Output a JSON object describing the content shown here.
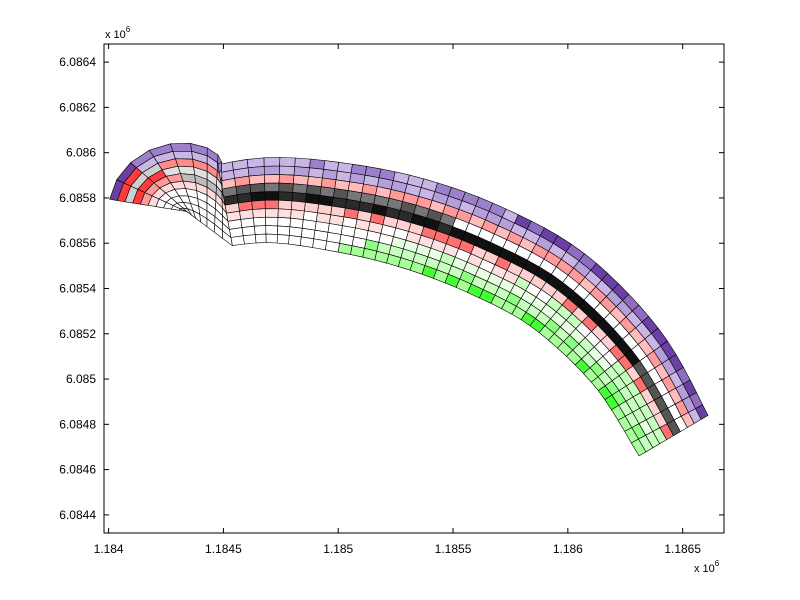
{
  "chart_data": {
    "type": "heatmap",
    "title": "",
    "xlabel": "",
    "ylabel": "",
    "description_of_marks": "curvilinear grid of colored quadrilateral cells",
    "x_axis": {
      "range": [
        1.18398,
        1.18668
      ],
      "ticks": [
        1.184,
        1.1845,
        1.185,
        1.1855,
        1.186,
        1.1865
      ],
      "tick_labels": [
        "1.184",
        "1.1845",
        "1.185",
        "1.1855",
        "1.186",
        "1.1865"
      ],
      "multiplier_base": "x 10",
      "multiplier_exp": "6"
    },
    "y_axis": {
      "range": [
        6.08432,
        6.08648
      ],
      "ticks": [
        6.0844,
        6.0846,
        6.0848,
        6.085,
        6.0852,
        6.0854,
        6.0856,
        6.0858,
        6.086,
        6.0862,
        6.0864
      ],
      "tick_labels": [
        "6.0844",
        "6.0846",
        "6.0848",
        "6.085",
        "6.0852",
        "6.0854",
        "6.0856",
        "6.0858",
        "6.086",
        "6.0862",
        "6.0864"
      ],
      "multiplier_base": "x 10",
      "multiplier_exp": "6"
    },
    "grid": false,
    "band_colors": {
      "purple": "#6a3fa6",
      "light_purple": "#c9b6e4",
      "red": "#ff3b3b",
      "pink": "#ffbcbc",
      "black": "#111111",
      "grey": "#9a9a9a",
      "green": "#44ff33",
      "light_green": "#c8ffc0",
      "white": "#ffffff"
    },
    "centerline": [
      [
        1.18436,
        6.08574
      ],
      [
        1.18468,
        6.08579
      ],
      [
        1.185,
        6.08576
      ],
      [
        1.18532,
        6.08569
      ],
      [
        1.18564,
        6.08557
      ],
      [
        1.18596,
        6.08539
      ],
      [
        1.18626,
        6.08509
      ],
      [
        1.18646,
        6.08475
      ]
    ],
    "rows": 10,
    "columns": 40
  }
}
